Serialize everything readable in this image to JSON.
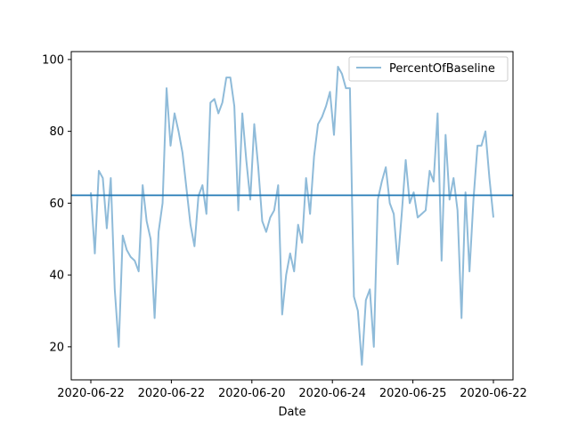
{
  "chart_data": {
    "type": "line",
    "title": "",
    "xlabel": "Date",
    "ylabel": "",
    "x_tick_labels": [
      "2020-06-22",
      "2020-06-22",
      "2020-06-20",
      "2020-06-24",
      "2020-06-25",
      "2020-06-22"
    ],
    "y_ticks": [
      20,
      40,
      60,
      80,
      100
    ],
    "ylim": [
      10.8,
      102.2
    ],
    "grid": false,
    "legend": {
      "position": "top-right"
    },
    "series": [
      {
        "name": "PercentOfBaseline",
        "color": "#1f77b4",
        "alpha": 0.5,
        "values": [
          63,
          46,
          69,
          67,
          53,
          67,
          36,
          20,
          51,
          47,
          45,
          44,
          41,
          65,
          55,
          50,
          28,
          52,
          60,
          92,
          76,
          85,
          80,
          74,
          64,
          54,
          48,
          62,
          65,
          57,
          88,
          89,
          85,
          88,
          95,
          95,
          87,
          58,
          85,
          72,
          61,
          82,
          70,
          55,
          52,
          56,
          58,
          65,
          29,
          40,
          46,
          41,
          54,
          49,
          67,
          57,
          73,
          82,
          84,
          87,
          91,
          79,
          98,
          96,
          92,
          92,
          34,
          30,
          15,
          33,
          36,
          20,
          61,
          66,
          70,
          60,
          57,
          43,
          57,
          72,
          60,
          63,
          56,
          57,
          58,
          69,
          66,
          85,
          44,
          79,
          61,
          67,
          58,
          28,
          63,
          41,
          61,
          76,
          76,
          80,
          67,
          56
        ]
      }
    ],
    "reference_lines": [
      {
        "orientation": "horizontal",
        "y": 62.2,
        "color": "#1f77b4"
      }
    ]
  }
}
